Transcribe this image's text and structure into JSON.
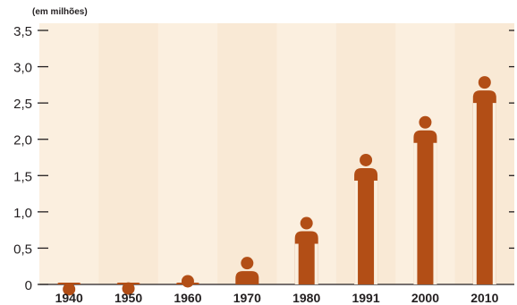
{
  "chart_data": {
    "type": "bar",
    "unit_label": "(em milhões)",
    "categories": [
      "1940",
      "1950",
      "1960",
      "1970",
      "1980",
      "1991",
      "2000",
      "2010"
    ],
    "values": [
      0.02,
      0.03,
      0.13,
      0.38,
      0.93,
      1.8,
      2.32,
      2.87
    ],
    "y_ticks": [
      "0",
      "0,5",
      "1,0",
      "1,5",
      "2,0",
      "2,5",
      "3,0",
      "3,5"
    ],
    "y_tick_values": [
      0,
      0.5,
      1.0,
      1.5,
      2.0,
      2.5,
      3.0,
      3.5
    ],
    "ylim": [
      0,
      3.5
    ],
    "marker": "person-shaped bar",
    "colors": {
      "bar": "#b24e16",
      "background": "#fbefdf",
      "band": "#f7e4cc",
      "axis": "#231f20",
      "text": "#231f20"
    }
  }
}
